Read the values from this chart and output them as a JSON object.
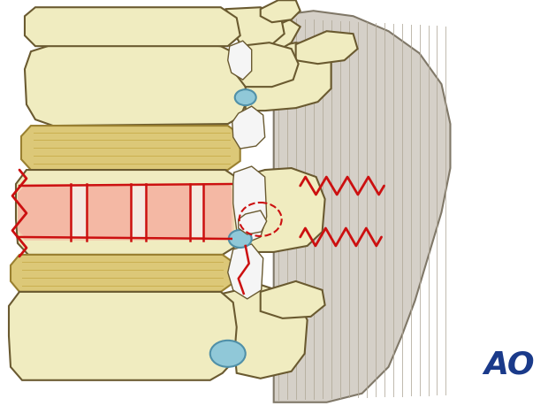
{
  "bg_color": "#ffffff",
  "bone_color": "#f0ecc0",
  "bone_color2": "#e8e4a8",
  "bone_outline": "#6a5a30",
  "disc_color": "#dcc878",
  "disc_outline": "#9a8030",
  "red_fracture": "#cc1010",
  "red_fill": "#f5b0a0",
  "blue_structure": "#90c8d8",
  "blue_outline": "#5090a8",
  "muscle_color": "#d5d0c8",
  "muscle_outline": "#807868",
  "muscle_lines": "#b0a898",
  "ao_color": "#1a3a8a",
  "canal_color": "#e8e8e8",
  "white_color": "#f5f5f5",
  "figsize": [
    6.2,
    4.59
  ],
  "dpi": 100
}
